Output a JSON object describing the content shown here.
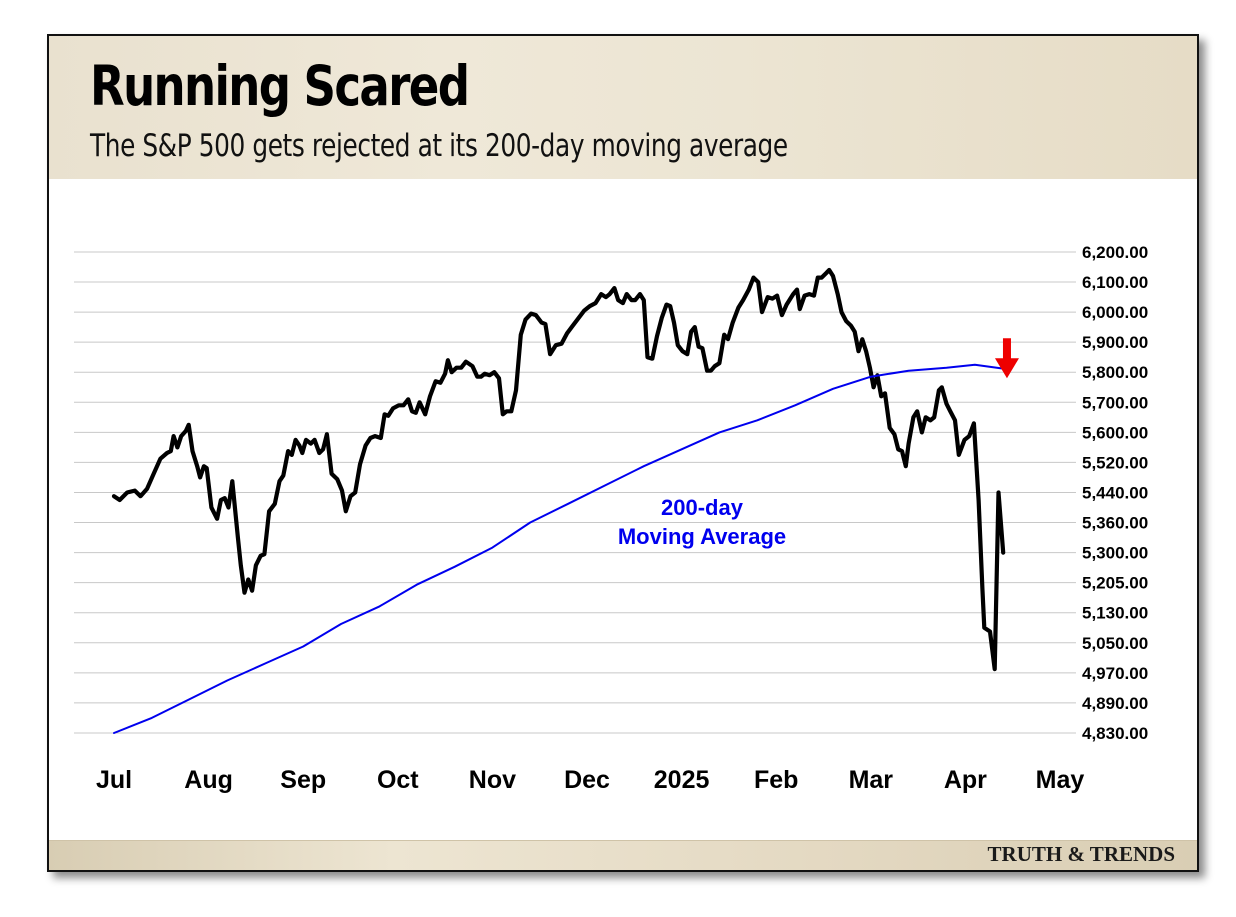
{
  "header": {
    "title": "Running Scared",
    "subtitle": "The S&P 500 gets rejected at its 200-day moving average"
  },
  "footer": {
    "brand": "TRUTH & TRENDS"
  },
  "chart_data": {
    "type": "line",
    "title": "Running Scared",
    "subtitle": "The S&P 500 gets rejected at its 200-day moving average",
    "xlabel": "",
    "ylabel": "",
    "y_axis_position": "right",
    "grid": true,
    "y_ticks": [
      "6,200.00",
      "6,100.00",
      "6,000.00",
      "5,900.00",
      "5,800.00",
      "5,700.00",
      "5,600.00",
      "5,520.00",
      "5,440.00",
      "5,360.00",
      "5,300.00",
      "5,205.00",
      "5,130.00",
      "5,050.00",
      "4,970.00",
      "4,890.00",
      "4,830.00"
    ],
    "x_ticks": [
      "Jul",
      "Aug",
      "Sep",
      "Oct",
      "Nov",
      "Dec",
      "2025",
      "Feb",
      "Mar",
      "Apr",
      "May"
    ],
    "x_range": [
      0,
      11
    ],
    "annotations": [
      {
        "text_lines": [
          "200-day",
          "Moving Average"
        ],
        "color": "#0000ee"
      },
      {
        "type": "arrow",
        "color": "#ee0000",
        "target": [
          9.45,
          5740
        ]
      }
    ],
    "colors": {
      "price": "#000000",
      "moving_average": "#0000ee",
      "arrow": "#ee0000"
    },
    "series": [
      {
        "values": [
          [
            0.0,
            5430
          ],
          [
            0.06,
            5420
          ],
          [
            0.14,
            5440
          ],
          [
            0.22,
            5445
          ],
          [
            0.28,
            5430
          ],
          [
            0.35,
            5450
          ],
          [
            0.42,
            5490
          ],
          [
            0.49,
            5530
          ],
          [
            0.56,
            5545
          ],
          [
            0.6,
            5550
          ],
          [
            0.63,
            5590
          ],
          [
            0.67,
            5560
          ],
          [
            0.71,
            5590
          ],
          [
            0.76,
            5605
          ],
          [
            0.79,
            5625
          ],
          [
            0.83,
            5550
          ],
          [
            0.88,
            5510
          ],
          [
            0.91,
            5480
          ],
          [
            0.95,
            5510
          ],
          [
            0.98,
            5505
          ],
          [
            1.03,
            5400
          ],
          [
            1.09,
            5370
          ],
          [
            1.13,
            5420
          ],
          [
            1.17,
            5425
          ],
          [
            1.21,
            5400
          ],
          [
            1.25,
            5470
          ],
          [
            1.31,
            5330
          ],
          [
            1.34,
            5260
          ],
          [
            1.38,
            5180
          ],
          [
            1.42,
            5215
          ],
          [
            1.46,
            5185
          ],
          [
            1.5,
            5260
          ],
          [
            1.55,
            5290
          ],
          [
            1.59,
            5295
          ],
          [
            1.64,
            5390
          ],
          [
            1.7,
            5410
          ],
          [
            1.75,
            5470
          ],
          [
            1.79,
            5485
          ],
          [
            1.84,
            5550
          ],
          [
            1.88,
            5540
          ],
          [
            1.92,
            5580
          ],
          [
            1.96,
            5565
          ],
          [
            1.99,
            5545
          ],
          [
            2.03,
            5580
          ],
          [
            2.08,
            5570
          ],
          [
            2.12,
            5580
          ],
          [
            2.17,
            5545
          ],
          [
            2.21,
            5555
          ],
          [
            2.25,
            5595
          ],
          [
            2.3,
            5490
          ],
          [
            2.36,
            5475
          ],
          [
            2.41,
            5445
          ],
          [
            2.45,
            5390
          ],
          [
            2.5,
            5430
          ],
          [
            2.55,
            5440
          ],
          [
            2.6,
            5515
          ],
          [
            2.66,
            5565
          ],
          [
            2.71,
            5585
          ],
          [
            2.76,
            5590
          ],
          [
            2.82,
            5585
          ],
          [
            2.86,
            5660
          ],
          [
            2.9,
            5655
          ],
          [
            2.95,
            5680
          ],
          [
            3.01,
            5690
          ],
          [
            3.06,
            5690
          ],
          [
            3.11,
            5710
          ],
          [
            3.15,
            5670
          ],
          [
            3.19,
            5665
          ],
          [
            3.23,
            5700
          ],
          [
            3.29,
            5660
          ],
          [
            3.34,
            5720
          ],
          [
            3.4,
            5770
          ],
          [
            3.45,
            5765
          ],
          [
            3.5,
            5795
          ],
          [
            3.53,
            5840
          ],
          [
            3.57,
            5800
          ],
          [
            3.62,
            5815
          ],
          [
            3.67,
            5815
          ],
          [
            3.72,
            5835
          ],
          [
            3.79,
            5820
          ],
          [
            3.84,
            5785
          ],
          [
            3.88,
            5785
          ],
          [
            3.92,
            5795
          ],
          [
            3.97,
            5790
          ],
          [
            4.02,
            5800
          ],
          [
            4.07,
            5780
          ],
          [
            4.11,
            5660
          ],
          [
            4.15,
            5670
          ],
          [
            4.2,
            5670
          ],
          [
            4.25,
            5740
          ],
          [
            4.3,
            5925
          ],
          [
            4.35,
            5975
          ],
          [
            4.41,
            5995
          ],
          [
            4.46,
            5990
          ],
          [
            4.52,
            5965
          ],
          [
            4.56,
            5960
          ],
          [
            4.61,
            5860
          ],
          [
            4.67,
            5890
          ],
          [
            4.73,
            5895
          ],
          [
            4.79,
            5930
          ],
          [
            4.85,
            5955
          ],
          [
            4.91,
            5980
          ],
          [
            4.97,
            6005
          ],
          [
            5.03,
            6020
          ],
          [
            5.09,
            6030
          ],
          [
            5.15,
            6060
          ],
          [
            5.2,
            6050
          ],
          [
            5.24,
            6060
          ],
          [
            5.29,
            6080
          ],
          [
            5.33,
            6040
          ],
          [
            5.38,
            6030
          ],
          [
            5.42,
            6060
          ],
          [
            5.47,
            6040
          ],
          [
            5.51,
            6040
          ],
          [
            5.56,
            6060
          ],
          [
            5.6,
            6040
          ],
          [
            5.64,
            5850
          ],
          [
            5.69,
            5845
          ],
          [
            5.74,
            5920
          ],
          [
            5.79,
            5980
          ],
          [
            5.84,
            6025
          ],
          [
            5.88,
            6020
          ],
          [
            5.92,
            5965
          ],
          [
            5.96,
            5890
          ],
          [
            6.01,
            5870
          ],
          [
            6.06,
            5860
          ],
          [
            6.1,
            5935
          ],
          [
            6.14,
            5950
          ],
          [
            6.18,
            5885
          ],
          [
            6.22,
            5880
          ],
          [
            6.27,
            5805
          ],
          [
            6.31,
            5805
          ],
          [
            6.35,
            5820
          ],
          [
            6.4,
            5830
          ],
          [
            6.45,
            5925
          ],
          [
            6.49,
            5910
          ],
          [
            6.54,
            5965
          ],
          [
            6.6,
            6015
          ],
          [
            6.65,
            6040
          ],
          [
            6.71,
            6075
          ],
          [
            6.76,
            6115
          ],
          [
            6.81,
            6100
          ],
          [
            6.85,
            6000
          ],
          [
            6.91,
            6050
          ],
          [
            6.96,
            6045
          ],
          [
            7.01,
            6055
          ],
          [
            7.06,
            5990
          ],
          [
            7.11,
            6025
          ],
          [
            7.18,
            6060
          ],
          [
            7.22,
            6075
          ],
          [
            7.25,
            6010
          ],
          [
            7.3,
            6055
          ],
          [
            7.35,
            6060
          ],
          [
            7.4,
            6055
          ],
          [
            7.44,
            6115
          ],
          [
            7.48,
            6115
          ],
          [
            7.53,
            6130
          ],
          [
            7.56,
            6140
          ],
          [
            7.6,
            6120
          ],
          [
            7.65,
            6060
          ],
          [
            7.69,
            6000
          ],
          [
            7.74,
            5970
          ],
          [
            7.79,
            5955
          ],
          [
            7.83,
            5935
          ],
          [
            7.87,
            5870
          ],
          [
            7.91,
            5910
          ],
          [
            7.95,
            5870
          ],
          [
            7.99,
            5815
          ],
          [
            8.03,
            5750
          ],
          [
            8.07,
            5790
          ],
          [
            8.11,
            5720
          ],
          [
            8.15,
            5730
          ],
          [
            8.2,
            5615
          ],
          [
            8.25,
            5595
          ],
          [
            8.29,
            5555
          ],
          [
            8.33,
            5550
          ],
          [
            8.37,
            5510
          ],
          [
            8.4,
            5570
          ],
          [
            8.45,
            5650
          ],
          [
            8.49,
            5670
          ],
          [
            8.54,
            5600
          ],
          [
            8.58,
            5650
          ],
          [
            8.63,
            5640
          ],
          [
            8.67,
            5650
          ],
          [
            8.72,
            5740
          ],
          [
            8.75,
            5750
          ],
          [
            8.8,
            5695
          ],
          [
            8.84,
            5670
          ],
          [
            8.89,
            5640
          ],
          [
            8.93,
            5540
          ],
          [
            8.99,
            5580
          ],
          [
            9.04,
            5590
          ],
          [
            9.09,
            5630
          ],
          [
            9.14,
            5420
          ],
          [
            9.18,
            5190
          ],
          [
            9.2,
            5090
          ],
          [
            9.26,
            5080
          ],
          [
            9.31,
            4980
          ],
          [
            9.35,
            5440
          ],
          [
            9.4,
            5300
          ]
        ]
      },
      {
        "name": "200-day Moving Average",
        "values": [
          [
            0.0,
            4830
          ],
          [
            0.4,
            4860
          ],
          [
            0.8,
            4900
          ],
          [
            1.2,
            4950
          ],
          [
            1.6,
            4995
          ],
          [
            2.0,
            5040
          ],
          [
            2.4,
            5100
          ],
          [
            2.8,
            5145
          ],
          [
            3.2,
            5200
          ],
          [
            3.6,
            5255
          ],
          [
            4.0,
            5310
          ],
          [
            4.4,
            5360
          ],
          [
            4.8,
            5410
          ],
          [
            5.2,
            5460
          ],
          [
            5.6,
            5510
          ],
          [
            6.0,
            5555
          ],
          [
            6.4,
            5600
          ],
          [
            6.8,
            5640
          ],
          [
            7.2,
            5690
          ],
          [
            7.6,
            5745
          ],
          [
            8.0,
            5785
          ],
          [
            8.4,
            5805
          ],
          [
            8.8,
            5815
          ],
          [
            9.1,
            5825
          ],
          [
            9.4,
            5812
          ]
        ]
      }
    ]
  }
}
